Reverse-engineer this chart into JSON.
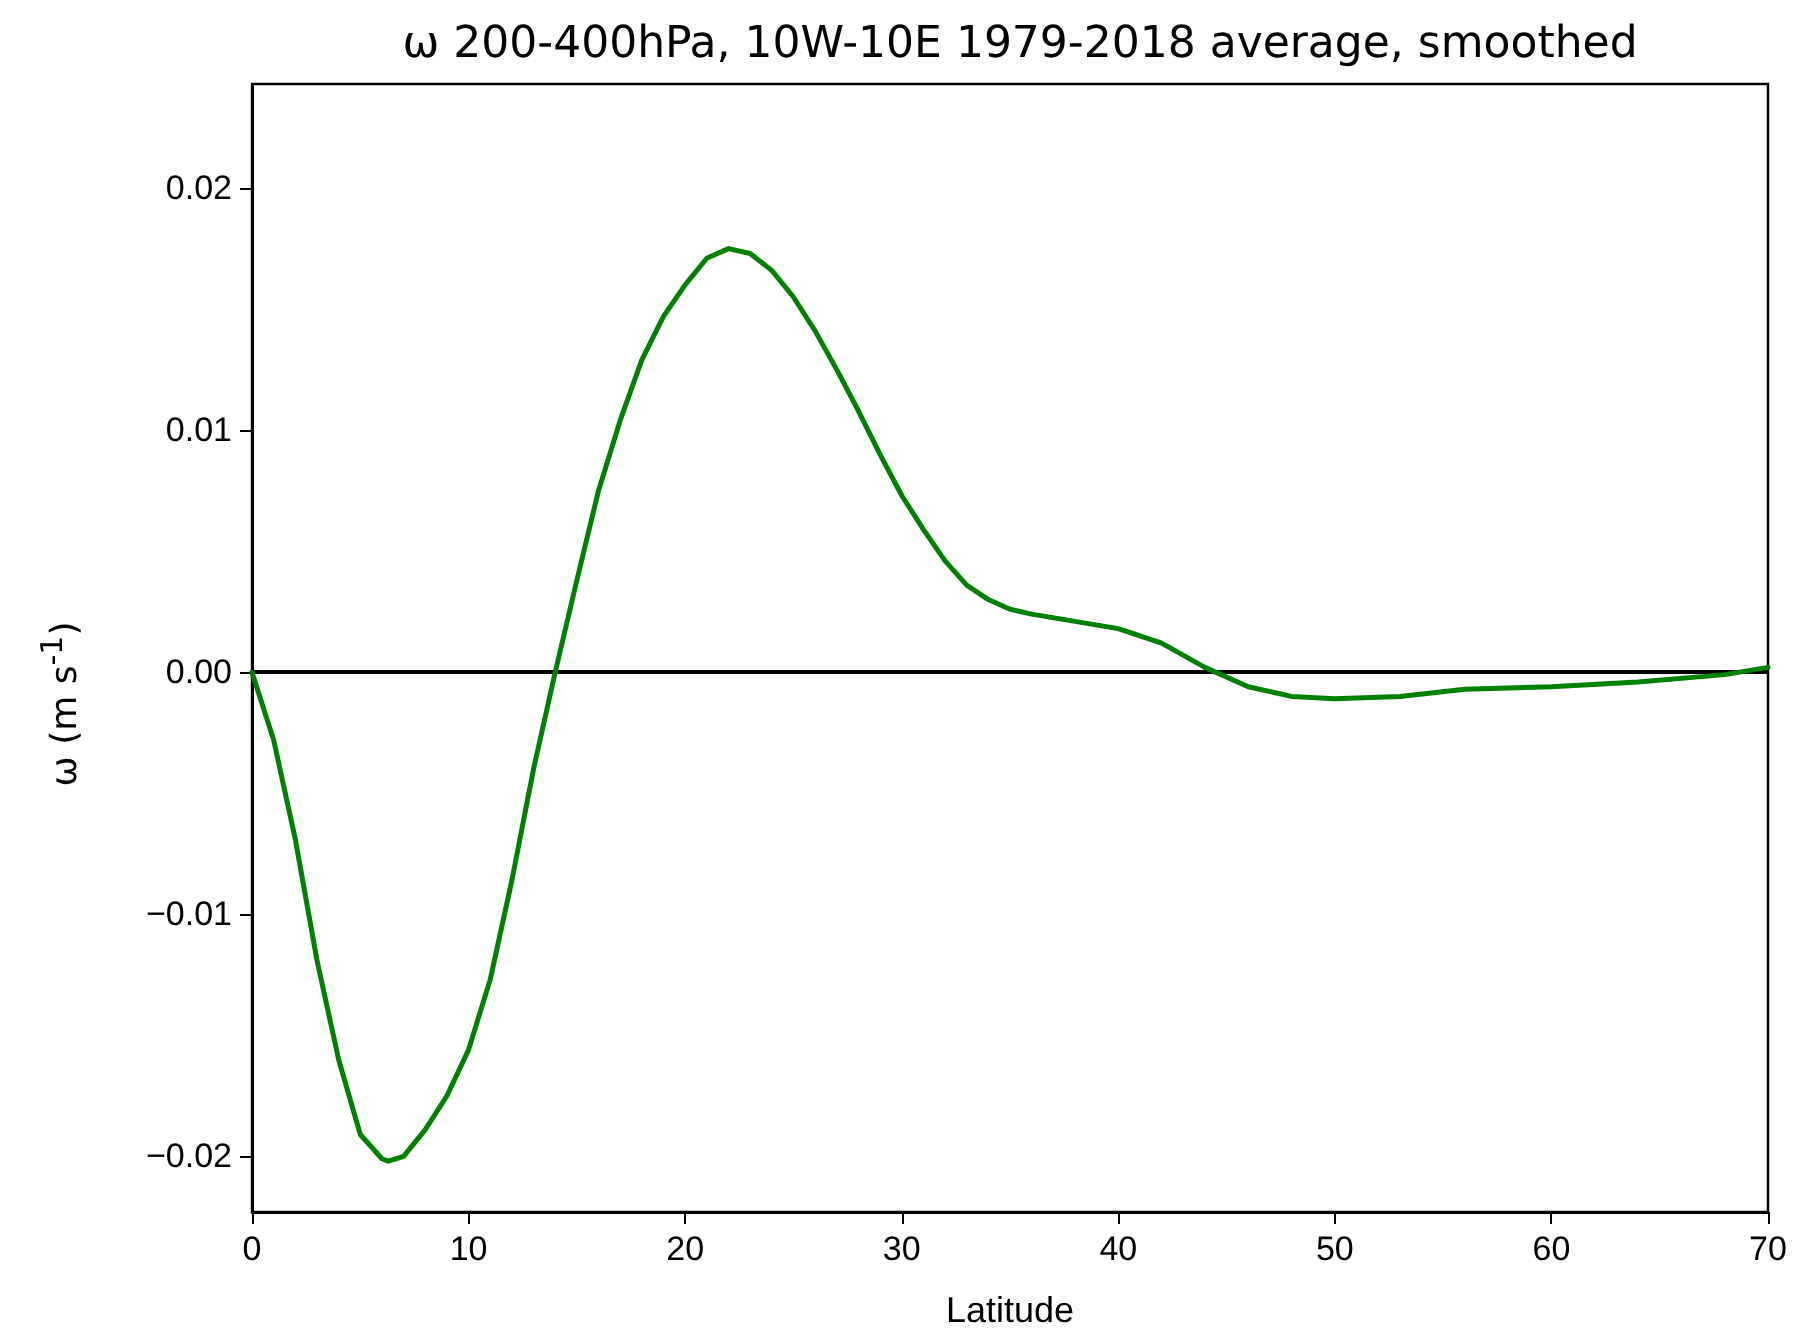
{
  "chart_data": {
    "type": "line",
    "title": "ω 200-400hPa, 10W-10E 1979-2018 average, smoothed",
    "xlabel": "Latitude",
    "ylabel": "ω (m s$^{-1}$)",
    "x": [
      0,
      1,
      2,
      3,
      4,
      5,
      6,
      6.3,
      7,
      8,
      9,
      10,
      11,
      12,
      13,
      14,
      15,
      16,
      17,
      18,
      19,
      20,
      21,
      22,
      23,
      24,
      25,
      26,
      27,
      28,
      29,
      30,
      31,
      32,
      33,
      34,
      35,
      36,
      38,
      40,
      42,
      44,
      46,
      48,
      50,
      53,
      56,
      60,
      64,
      68,
      70
    ],
    "series": [
      {
        "color": "#008000",
        "values": [
          0,
          -0.0028,
          -0.0069,
          -0.0119,
          -0.016,
          -0.0191,
          -0.0201,
          -0.0202,
          -0.02,
          -0.0189,
          -0.0175,
          -0.0156,
          -0.0127,
          -0.0086,
          -0.004,
          0,
          0.0038,
          0.0075,
          0.0104,
          0.0129,
          0.0147,
          0.016,
          0.0171,
          0.0175,
          0.0173,
          0.0166,
          0.0155,
          0.0141,
          0.0125,
          0.0108,
          0.009,
          0.0073,
          0.0059,
          0.0046,
          0.0036,
          0.003,
          0.0026,
          0.0024,
          0.0021,
          0.0018,
          0.0012,
          0.0002,
          -0.0006,
          -0.001,
          -0.0011,
          -0.001,
          -0.0007,
          -0.0006,
          -0.0004,
          -0.0001,
          0.0002
        ]
      }
    ],
    "xlim": [
      0,
      70
    ],
    "xticks": [
      0,
      10,
      20,
      30,
      40,
      50,
      60,
      70
    ],
    "ylim": [
      -0.0223,
      0.0243
    ],
    "yticks": [
      {
        "value": -0.02,
        "label": "−0.02"
      },
      {
        "value": -0.01,
        "label": "−0.01"
      },
      {
        "value": 0,
        "label": "0.00"
      },
      {
        "value": 0.01,
        "label": "0.01"
      },
      {
        "value": 0.02,
        "label": "0.02"
      }
    ],
    "ref_lines": [
      {
        "axis": "y",
        "value": 0,
        "color": "#000000"
      }
    ],
    "grid": false,
    "marker": "none",
    "line_style": "solid"
  }
}
